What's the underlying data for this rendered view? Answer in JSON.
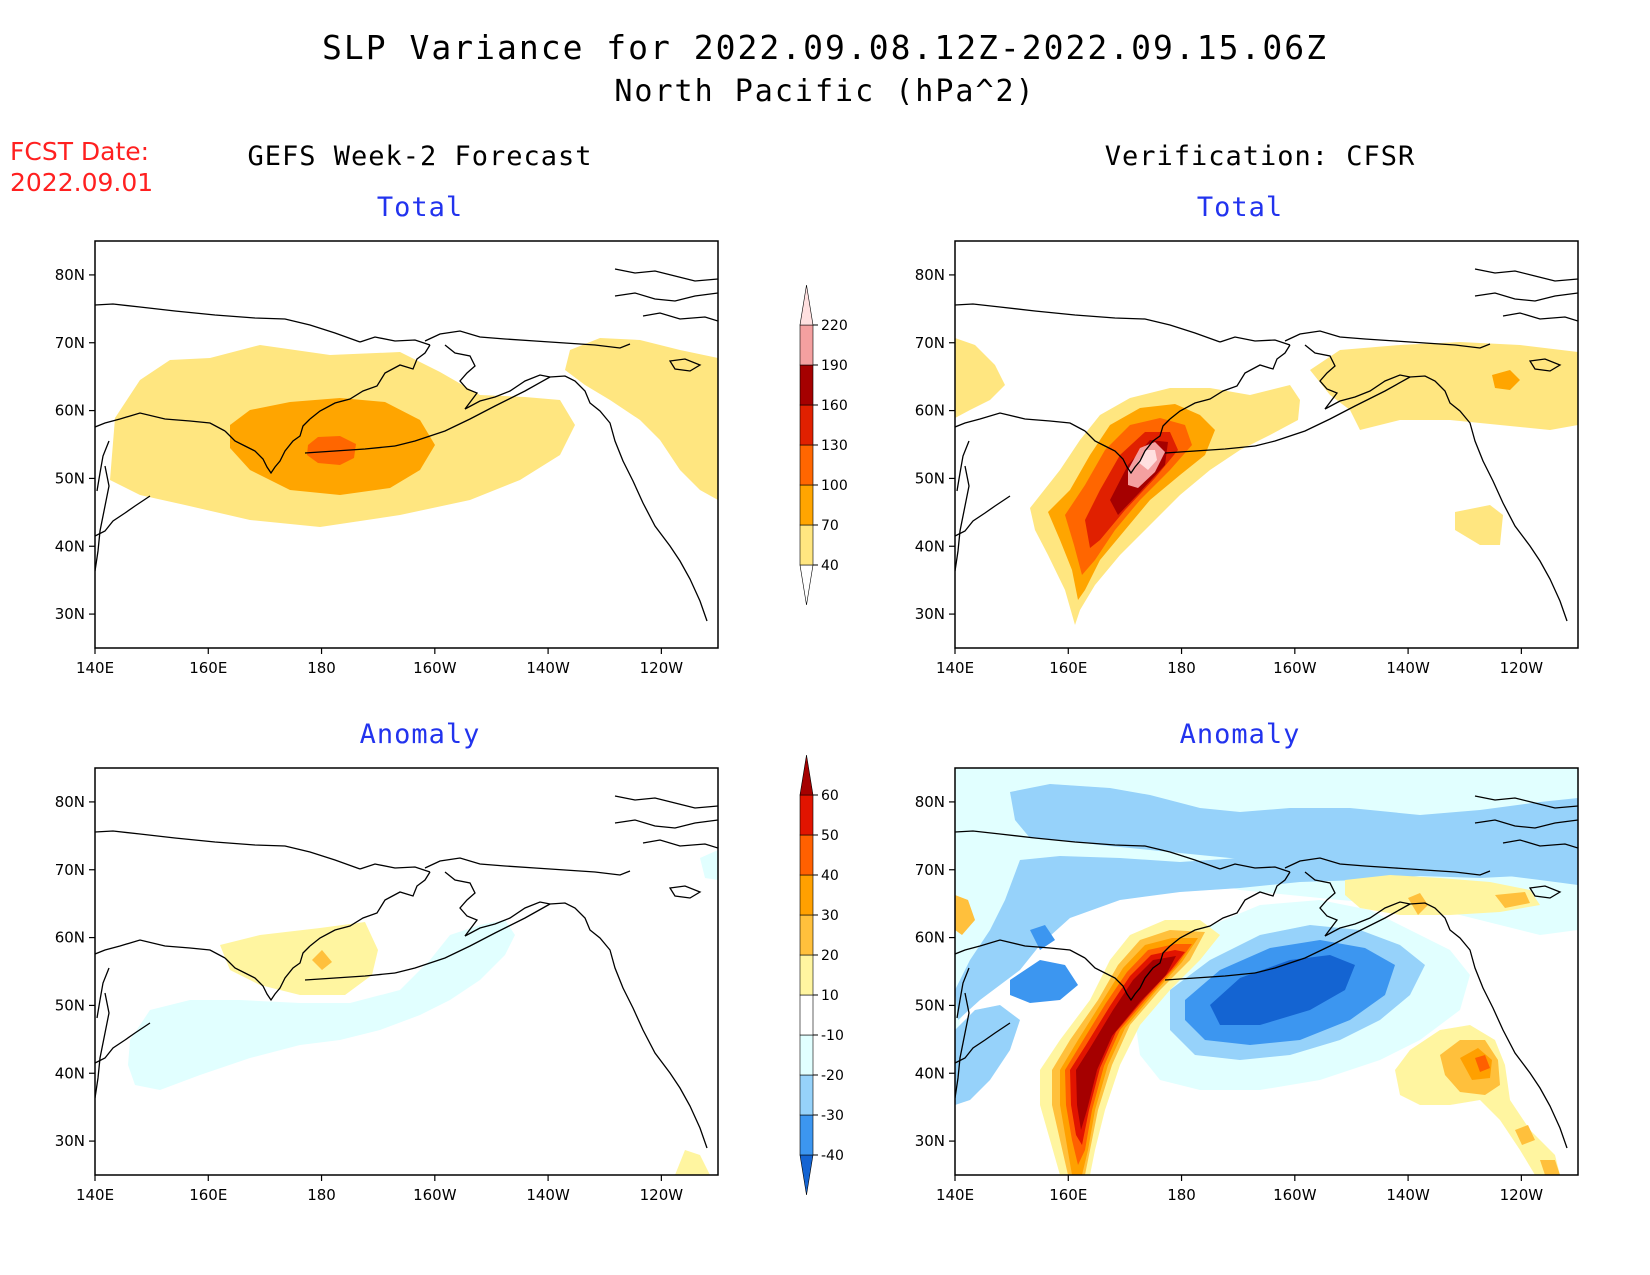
{
  "header": {
    "title_line1": "SLP Variance for 2022.09.08.12Z-2022.09.15.06Z",
    "title_line2": "North Pacific (hPa^2)",
    "fcst_label": "FCST Date:",
    "fcst_date": "2022.09.01"
  },
  "columns": {
    "left_title": "GEFS Week-2 Forecast",
    "right_title": "Verification: CFSR"
  },
  "panels": [
    {
      "id": "gefs-total",
      "subtitle": "Total"
    },
    {
      "id": "cfsr-total",
      "subtitle": "Total"
    },
    {
      "id": "gefs-anomaly",
      "subtitle": "Anomaly"
    },
    {
      "id": "cfsr-anomaly",
      "subtitle": "Anomaly"
    }
  ],
  "axes": {
    "lon_labels": [
      "140E",
      "160E",
      "180",
      "160W",
      "140W",
      "120W"
    ],
    "lon_values": [
      140,
      160,
      180,
      200,
      220,
      240
    ],
    "lat_labels": [
      "80N",
      "70N",
      "60N",
      "50N",
      "40N",
      "30N"
    ],
    "lat_values": [
      80,
      70,
      60,
      50,
      40,
      30
    ],
    "lon_range": [
      140,
      250
    ],
    "lat_range": [
      25,
      85
    ]
  },
  "colorbars": {
    "total": {
      "levels": [
        "40",
        "70",
        "100",
        "130",
        "160",
        "190",
        "220"
      ],
      "colors": [
        "#ffe680",
        "#ffa500",
        "#ff6600",
        "#e02000",
        "#a50000",
        "#f4a0a0",
        "#ffe0e0"
      ]
    },
    "anomaly": {
      "levels": [
        "-40",
        "-30",
        "-20",
        "-10",
        "10",
        "20",
        "30",
        "40",
        "50",
        "60"
      ],
      "colors": [
        "#1464d2",
        "#3c96f0",
        "#96d2fa",
        "#e1ffff",
        "#ffffff",
        "#fff5a0",
        "#ffc03c",
        "#ffa000",
        "#ff6000",
        "#e11400",
        "#a50000"
      ]
    }
  },
  "colors": {
    "subtitle": "#2233ee",
    "fcst": "#ff2020"
  }
}
